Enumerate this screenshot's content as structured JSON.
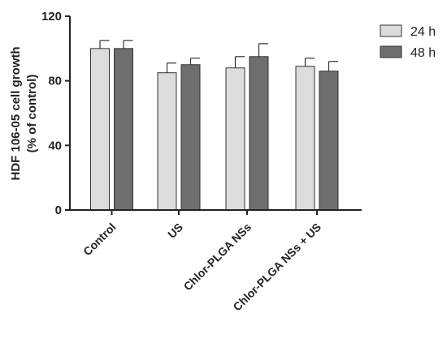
{
  "chart_data": {
    "type": "bar",
    "title": "",
    "xlabel": "",
    "ylabel": "HDF 106-05 cell growth",
    "ylabel_line2": "(% of control)",
    "ylim": [
      0,
      120
    ],
    "yticks": [
      0,
      40,
      80,
      120
    ],
    "grid": false,
    "legend_position": "top-right",
    "categories": [
      "Control",
      "US",
      "Chlor-PLGA NSs",
      "Chlor-PLGA NSs + US"
    ],
    "series": [
      {
        "name": "24 h",
        "color": "#dcdcdc",
        "values": [
          100,
          85,
          88,
          89
        ],
        "errors": [
          5,
          6,
          7,
          5
        ]
      },
      {
        "name": "48 h",
        "color": "#6e6e6e",
        "values": [
          100,
          90,
          95,
          86
        ],
        "errors": [
          5,
          4,
          8,
          6
        ]
      }
    ]
  }
}
